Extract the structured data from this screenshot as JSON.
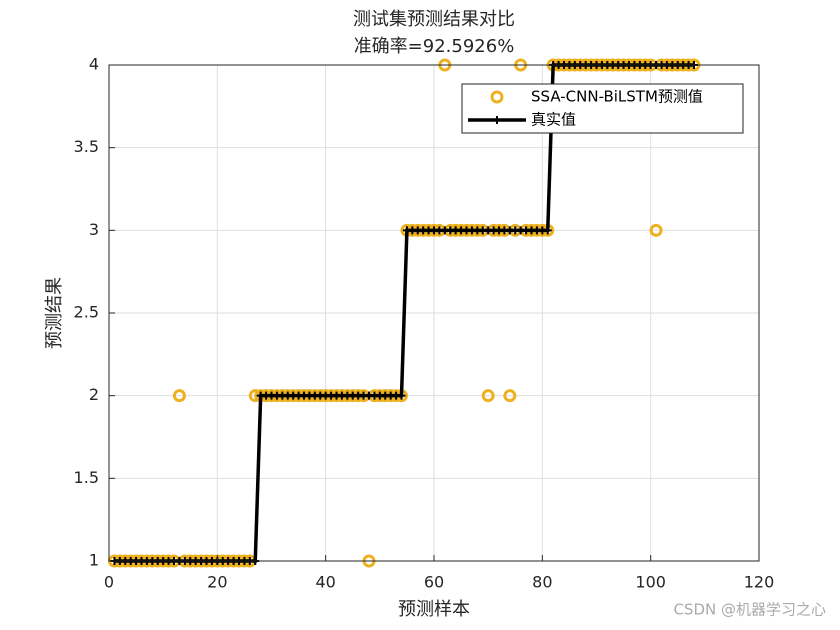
{
  "chart_data": {
    "type": "line",
    "title": "测试集预测结果对比",
    "subtitle": "准确率=92.5926%",
    "x_label": "预测样本",
    "y_label": "预测结果",
    "watermark": "CSDN @机器学习之心",
    "x": [
      1,
      2,
      3,
      4,
      5,
      6,
      7,
      8,
      9,
      10,
      11,
      12,
      13,
      14,
      15,
      16,
      17,
      18,
      19,
      20,
      21,
      22,
      23,
      24,
      25,
      26,
      27,
      28,
      29,
      30,
      31,
      32,
      33,
      34,
      35,
      36,
      37,
      38,
      39,
      40,
      41,
      42,
      43,
      44,
      45,
      46,
      47,
      48,
      49,
      50,
      51,
      52,
      53,
      54,
      55,
      56,
      57,
      58,
      59,
      60,
      61,
      62,
      63,
      64,
      65,
      66,
      67,
      68,
      69,
      70,
      71,
      72,
      73,
      74,
      75,
      76,
      77,
      78,
      79,
      80,
      81,
      82,
      83,
      84,
      85,
      86,
      87,
      88,
      89,
      90,
      91,
      92,
      93,
      94,
      95,
      96,
      97,
      98,
      99,
      100,
      101,
      102,
      103,
      104,
      105,
      106,
      107,
      108
    ],
    "series": [
      {
        "name": "SSA-CNN-BiLSTM预测值",
        "color": "#EDB120",
        "marker": "circle",
        "values": [
          1,
          1,
          1,
          1,
          1,
          1,
          1,
          1,
          1,
          1,
          1,
          1,
          2,
          1,
          1,
          1,
          1,
          1,
          1,
          1,
          1,
          1,
          1,
          1,
          1,
          1,
          2,
          2,
          2,
          2,
          2,
          2,
          2,
          2,
          2,
          2,
          2,
          2,
          2,
          2,
          2,
          2,
          2,
          2,
          2,
          2,
          2,
          1,
          2,
          2,
          2,
          2,
          2,
          2,
          3,
          3,
          3,
          3,
          3,
          3,
          3,
          4,
          3,
          3,
          3,
          3,
          3,
          3,
          3,
          2,
          3,
          3,
          3,
          2,
          3,
          4,
          3,
          3,
          3,
          3,
          3,
          4,
          4,
          4,
          4,
          4,
          4,
          4,
          4,
          4,
          4,
          4,
          4,
          4,
          4,
          4,
          4,
          4,
          4,
          4,
          3,
          4,
          4,
          4,
          4,
          4,
          4,
          4
        ]
      },
      {
        "name": "真实值",
        "color": "#000000",
        "marker": "plus",
        "values": [
          1,
          1,
          1,
          1,
          1,
          1,
          1,
          1,
          1,
          1,
          1,
          1,
          1,
          1,
          1,
          1,
          1,
          1,
          1,
          1,
          1,
          1,
          1,
          1,
          1,
          1,
          1,
          2,
          2,
          2,
          2,
          2,
          2,
          2,
          2,
          2,
          2,
          2,
          2,
          2,
          2,
          2,
          2,
          2,
          2,
          2,
          2,
          2,
          2,
          2,
          2,
          2,
          2,
          2,
          3,
          3,
          3,
          3,
          3,
          3,
          3,
          3,
          3,
          3,
          3,
          3,
          3,
          3,
          3,
          3,
          3,
          3,
          3,
          3,
          3,
          3,
          3,
          3,
          3,
          3,
          3,
          4,
          4,
          4,
          4,
          4,
          4,
          4,
          4,
          4,
          4,
          4,
          4,
          4,
          4,
          4,
          4,
          4,
          4,
          4,
          4,
          4,
          4,
          4,
          4,
          4,
          4,
          4
        ]
      }
    ],
    "xlim": [
      0,
      120
    ],
    "xticks": [
      0,
      20,
      40,
      60,
      80,
      100,
      120
    ],
    "ylim": [
      1,
      4
    ],
    "yticks": [
      1,
      1.5,
      2,
      2.5,
      3,
      3.5,
      4
    ],
    "grid": true,
    "legend": "northeast"
  }
}
